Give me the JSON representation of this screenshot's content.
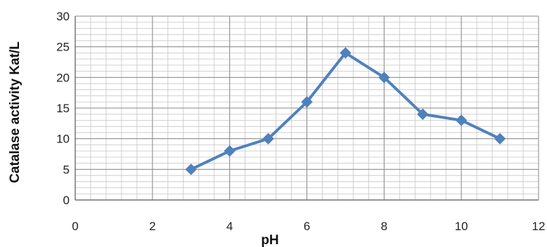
{
  "chart_data": {
    "type": "line",
    "title": "",
    "xlabel": "pH",
    "ylabel": "Catalase activity Kat/L",
    "xlim": [
      0,
      12
    ],
    "ylim": [
      0,
      30
    ],
    "xticks": [
      0,
      2,
      4,
      6,
      8,
      10,
      12
    ],
    "yticks": [
      0,
      5,
      10,
      15,
      20,
      25,
      30
    ],
    "grid": true,
    "legend": "none",
    "series": [
      {
        "color": "#4F81BD",
        "marker": "diamond",
        "x": [
          3,
          4,
          5,
          6,
          7,
          8,
          9,
          10,
          11
        ],
        "y": [
          5,
          8,
          10,
          16,
          24,
          20,
          14,
          13,
          10
        ]
      }
    ]
  }
}
